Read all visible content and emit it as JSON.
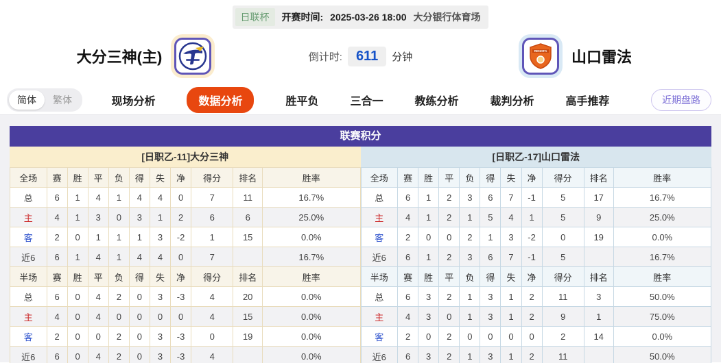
{
  "top_bar": {
    "league": "日联杯",
    "kickoff_label": "开赛时间:",
    "kickoff_time": "2025-03-26 18:00",
    "venue": "大分银行体育场"
  },
  "match_header": {
    "home_name": "大分三神(主)",
    "away_name": "山口雷法",
    "countdown_label": "倒计时:",
    "countdown_value": "611",
    "countdown_unit": "分钟"
  },
  "nav": {
    "lang_simplified": "简体",
    "lang_traditional": "繁体",
    "tabs": [
      {
        "label": "现场分析",
        "active": false
      },
      {
        "label": "数据分析",
        "active": true
      },
      {
        "label": "胜平负",
        "active": false
      },
      {
        "label": "三合一",
        "active": false
      },
      {
        "label": "教练分析",
        "active": false
      },
      {
        "label": "裁判分析",
        "active": false
      },
      {
        "label": "高手推荐",
        "active": false
      }
    ],
    "recent_trend_button": "近期盘路"
  },
  "league_table": {
    "title": "联赛积分",
    "home_section_title": "[日职乙-11]大分三神",
    "away_section_title": "[日职乙-17]山口雷法",
    "home_sections": [
      {
        "columns": [
          "全场",
          "赛",
          "胜",
          "平",
          "负",
          "得",
          "失",
          "净",
          "得分",
          "排名",
          "胜率"
        ],
        "rows": [
          {
            "label": "总",
            "type": "total",
            "values": [
              "6",
              "1",
              "4",
              "1",
              "4",
              "4",
              "0",
              "7",
              "11",
              "16.7%"
            ]
          },
          {
            "label": "主",
            "type": "home",
            "values": [
              "4",
              "1",
              "3",
              "0",
              "3",
              "1",
              "2",
              "6",
              "6",
              "25.0%"
            ]
          },
          {
            "label": "客",
            "type": "away",
            "values": [
              "2",
              "0",
              "1",
              "1",
              "1",
              "3",
              "-2",
              "1",
              "15",
              "0.0%"
            ]
          },
          {
            "label": "近6",
            "type": "recent",
            "values": [
              "6",
              "1",
              "4",
              "1",
              "4",
              "4",
              "0",
              "7",
              "",
              "16.7%"
            ]
          }
        ]
      },
      {
        "columns": [
          "半场",
          "赛",
          "胜",
          "平",
          "负",
          "得",
          "失",
          "净",
          "得分",
          "排名",
          "胜率"
        ],
        "rows": [
          {
            "label": "总",
            "type": "total",
            "values": [
              "6",
              "0",
              "4",
              "2",
              "0",
              "3",
              "-3",
              "4",
              "20",
              "0.0%"
            ]
          },
          {
            "label": "主",
            "type": "home",
            "values": [
              "4",
              "0",
              "4",
              "0",
              "0",
              "0",
              "0",
              "4",
              "15",
              "0.0%"
            ]
          },
          {
            "label": "客",
            "type": "away",
            "values": [
              "2",
              "0",
              "0",
              "2",
              "0",
              "3",
              "-3",
              "0",
              "19",
              "0.0%"
            ]
          },
          {
            "label": "近6",
            "type": "recent",
            "values": [
              "6",
              "0",
              "4",
              "2",
              "0",
              "3",
              "-3",
              "4",
              "",
              "0.0%"
            ]
          }
        ]
      }
    ],
    "away_sections": [
      {
        "columns": [
          "全场",
          "赛",
          "胜",
          "平",
          "负",
          "得",
          "失",
          "净",
          "得分",
          "排名",
          "胜率"
        ],
        "rows": [
          {
            "label": "总",
            "type": "total",
            "values": [
              "6",
              "1",
              "2",
              "3",
              "6",
              "7",
              "-1",
              "5",
              "17",
              "16.7%"
            ]
          },
          {
            "label": "主",
            "type": "home",
            "values": [
              "4",
              "1",
              "2",
              "1",
              "5",
              "4",
              "1",
              "5",
              "9",
              "25.0%"
            ]
          },
          {
            "label": "客",
            "type": "away",
            "values": [
              "2",
              "0",
              "0",
              "2",
              "1",
              "3",
              "-2",
              "0",
              "19",
              "0.0%"
            ]
          },
          {
            "label": "近6",
            "type": "recent",
            "values": [
              "6",
              "1",
              "2",
              "3",
              "6",
              "7",
              "-1",
              "5",
              "",
              "16.7%"
            ]
          }
        ]
      },
      {
        "columns": [
          "半场",
          "赛",
          "胜",
          "平",
          "负",
          "得",
          "失",
          "净",
          "得分",
          "排名",
          "胜率"
        ],
        "rows": [
          {
            "label": "总",
            "type": "total",
            "values": [
              "6",
              "3",
              "2",
              "1",
              "3",
              "1",
              "2",
              "11",
              "3",
              "50.0%"
            ]
          },
          {
            "label": "主",
            "type": "home",
            "values": [
              "4",
              "3",
              "0",
              "1",
              "3",
              "1",
              "2",
              "9",
              "1",
              "75.0%"
            ]
          },
          {
            "label": "客",
            "type": "away",
            "values": [
              "2",
              "0",
              "2",
              "0",
              "0",
              "0",
              "0",
              "2",
              "14",
              "0.0%"
            ]
          },
          {
            "label": "近6",
            "type": "recent",
            "values": [
              "6",
              "3",
              "2",
              "1",
              "3",
              "1",
              "2",
              "11",
              "",
              "50.0%"
            ]
          }
        ]
      }
    ]
  },
  "colors": {
    "accent_orange": "#e8470f",
    "table_title_purple": "#4a3e9e",
    "home_panel_cream": "#faeecd",
    "away_panel_blue": "#d8e6ee",
    "countdown_blue": "#1552c8",
    "home_row_red": "#cc2b2b",
    "away_row_blue": "#2b50cc",
    "league_tag_green": "#6a9e74",
    "recent_button_purple": "#7b6ed6"
  }
}
